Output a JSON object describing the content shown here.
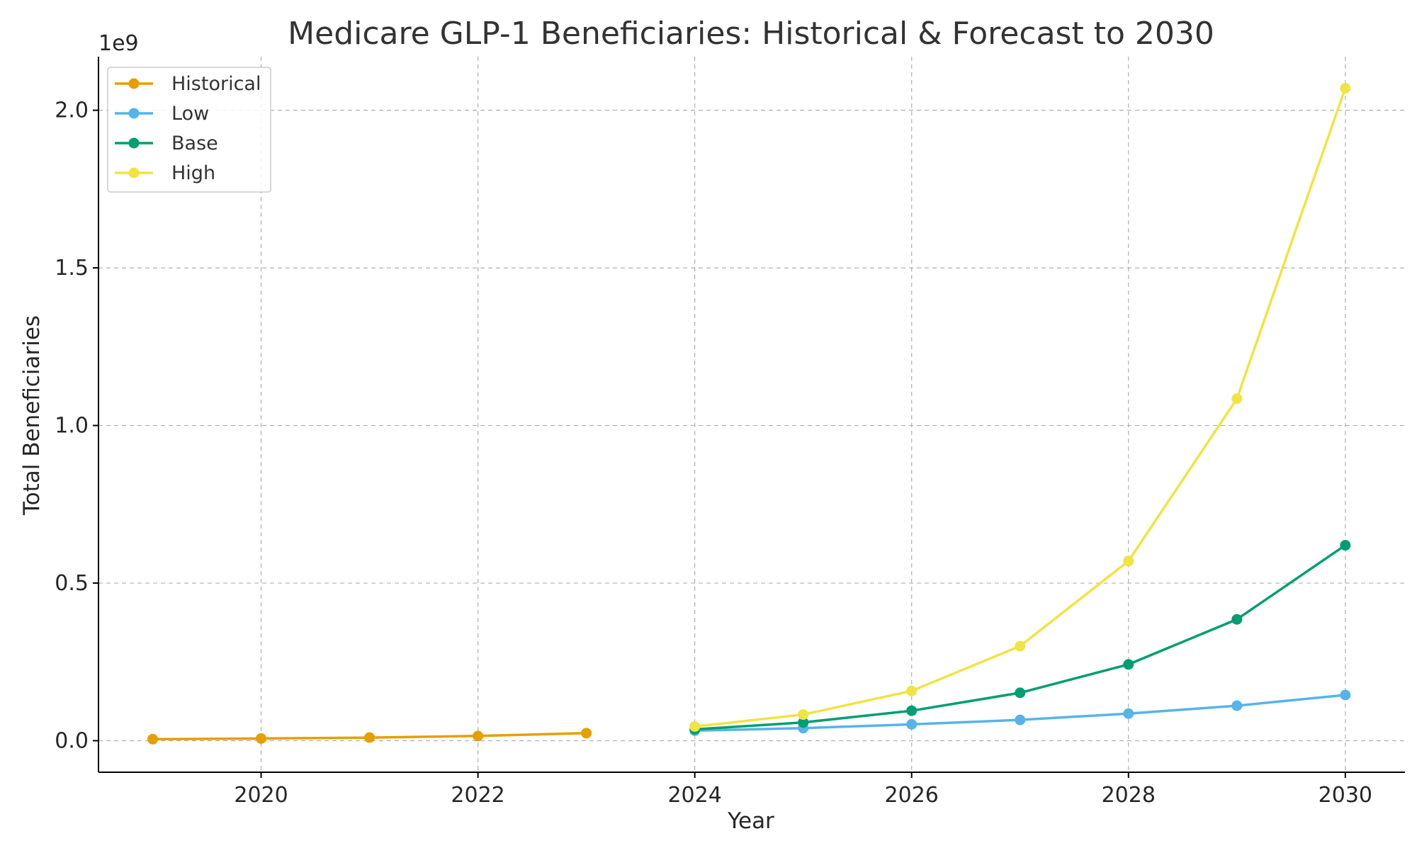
{
  "chart_data": {
    "type": "line",
    "title": "Medicare GLP-1 Beneficiaries: Historical & Forecast to 2030",
    "xlabel": "Year",
    "ylabel": "Total Beneficiaries",
    "y_offset_label": "1e9",
    "xlim": [
      2018.5,
      2030.55
    ],
    "ylim": [
      -100000000,
      2170000000
    ],
    "x_ticks": [
      2020,
      2022,
      2024,
      2026,
      2028,
      2030
    ],
    "x_tick_labels": [
      "2020",
      "2022",
      "2024",
      "2026",
      "2028",
      "2030"
    ],
    "y_ticks": [
      0,
      500000000,
      1000000000,
      1500000000,
      2000000000
    ],
    "y_tick_labels": [
      "0.0",
      "0.5",
      "1.0",
      "1.5",
      "2.0"
    ],
    "grid": true,
    "legend_position": "top-left",
    "series": [
      {
        "name": "Historical",
        "color": "#e69f00",
        "x": [
          2019,
          2020,
          2021,
          2022,
          2023
        ],
        "y": [
          5000000,
          7000000,
          10000000,
          15000000,
          24000000
        ]
      },
      {
        "name": "Low",
        "color": "#56b4e9",
        "x": [
          2024,
          2025,
          2026,
          2027,
          2028,
          2029,
          2030
        ],
        "y": [
          32000000,
          40000000,
          52000000,
          66000000,
          86000000,
          111000000,
          145000000
        ]
      },
      {
        "name": "Base",
        "color": "#009e73",
        "x": [
          2024,
          2025,
          2026,
          2027,
          2028,
          2029,
          2030
        ],
        "y": [
          36000000,
          58000000,
          95000000,
          152000000,
          242000000,
          385000000,
          620000000
        ]
      },
      {
        "name": "High",
        "color": "#f0e442",
        "x": [
          2024,
          2025,
          2026,
          2027,
          2028,
          2029,
          2030
        ],
        "y": [
          45000000,
          83000000,
          158000000,
          300000000,
          570000000,
          1085000000,
          2070000000
        ]
      }
    ]
  }
}
